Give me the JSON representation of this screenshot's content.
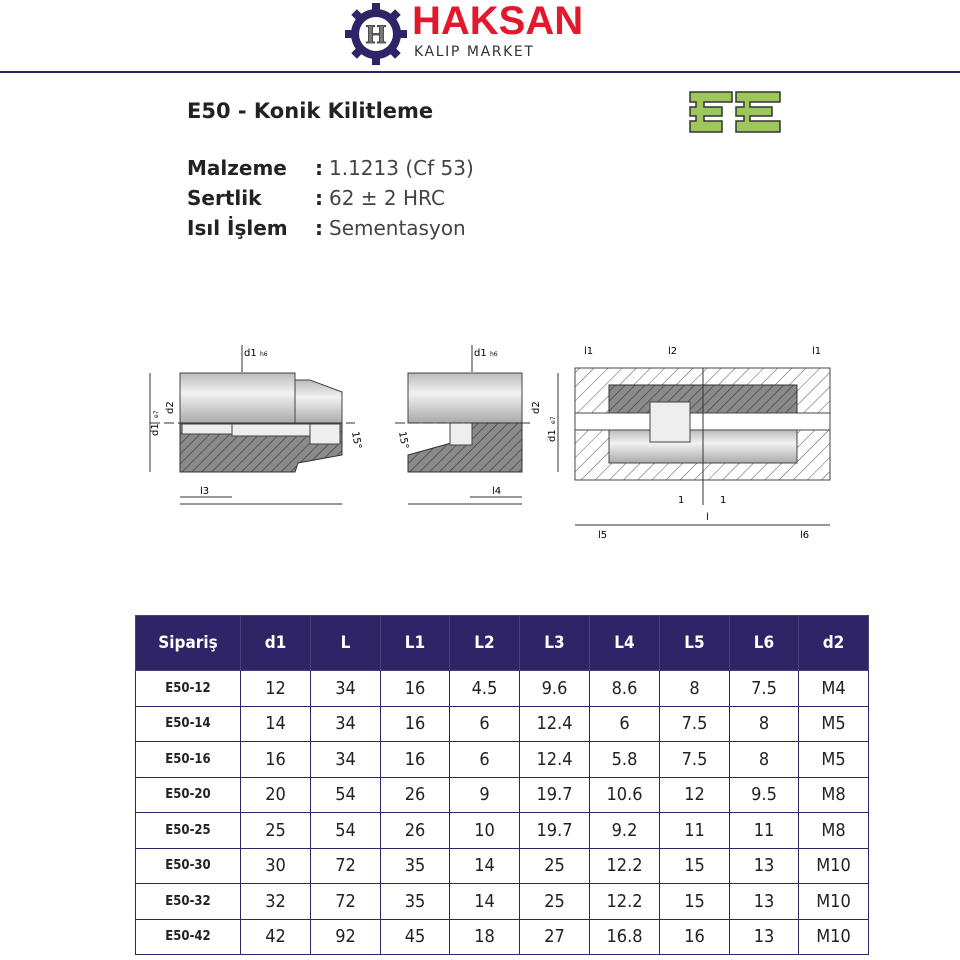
{
  "header": {
    "brand": "HAKSAN",
    "subtitle": "KALIP MARKET",
    "logo_letter": "H",
    "colors": {
      "brand_red": "#e3182d",
      "navy": "#2e2466"
    }
  },
  "product": {
    "title": "E50 - Konik Kilitleme",
    "specs": [
      {
        "label": "Malzeme",
        "value": "1.1213 (Cf 53)"
      },
      {
        "label": "Sertlik",
        "value": "62 ± 2 HRC"
      },
      {
        "label": "Isıl İşlem",
        "value": "Sementasyon"
      }
    ]
  },
  "drawing": {
    "labels": {
      "d1h6": "d1",
      "h6": "h6",
      "d1e7": "d1",
      "e7": "e7",
      "d2": "d2",
      "angle": "15°",
      "l3": "l3",
      "l4": "l4",
      "l1": "l1",
      "l2": "l2",
      "l5": "l5",
      "l6": "l6",
      "l": "l",
      "one": "1"
    }
  },
  "table": {
    "headers": [
      "Sipariş",
      "d1",
      "L",
      "L1",
      "L2",
      "L3",
      "L4",
      "L5",
      "L6",
      "d2"
    ],
    "rows": [
      [
        "E50-12",
        "12",
        "34",
        "16",
        "4.5",
        "9.6",
        "8.6",
        "8",
        "7.5",
        "M4"
      ],
      [
        "E50-14",
        "14",
        "34",
        "16",
        "6",
        "12.4",
        "6",
        "7.5",
        "8",
        "M5"
      ],
      [
        "E50-16",
        "16",
        "34",
        "16",
        "6",
        "12.4",
        "5.8",
        "7.5",
        "8",
        "M5"
      ],
      [
        "E50-20",
        "20",
        "54",
        "26",
        "9",
        "19.7",
        "10.6",
        "12",
        "9.5",
        "M8"
      ],
      [
        "E50-25",
        "25",
        "54",
        "26",
        "10",
        "19.7",
        "9.2",
        "11",
        "11",
        "M8"
      ],
      [
        "E50-30",
        "30",
        "72",
        "35",
        "14",
        "25",
        "12.2",
        "15",
        "13",
        "M10"
      ],
      [
        "E50-32",
        "32",
        "72",
        "35",
        "14",
        "25",
        "12.2",
        "15",
        "13",
        "M10"
      ],
      [
        "E50-42",
        "42",
        "92",
        "45",
        "18",
        "27",
        "16.8",
        "16",
        "13",
        "M10"
      ]
    ]
  }
}
